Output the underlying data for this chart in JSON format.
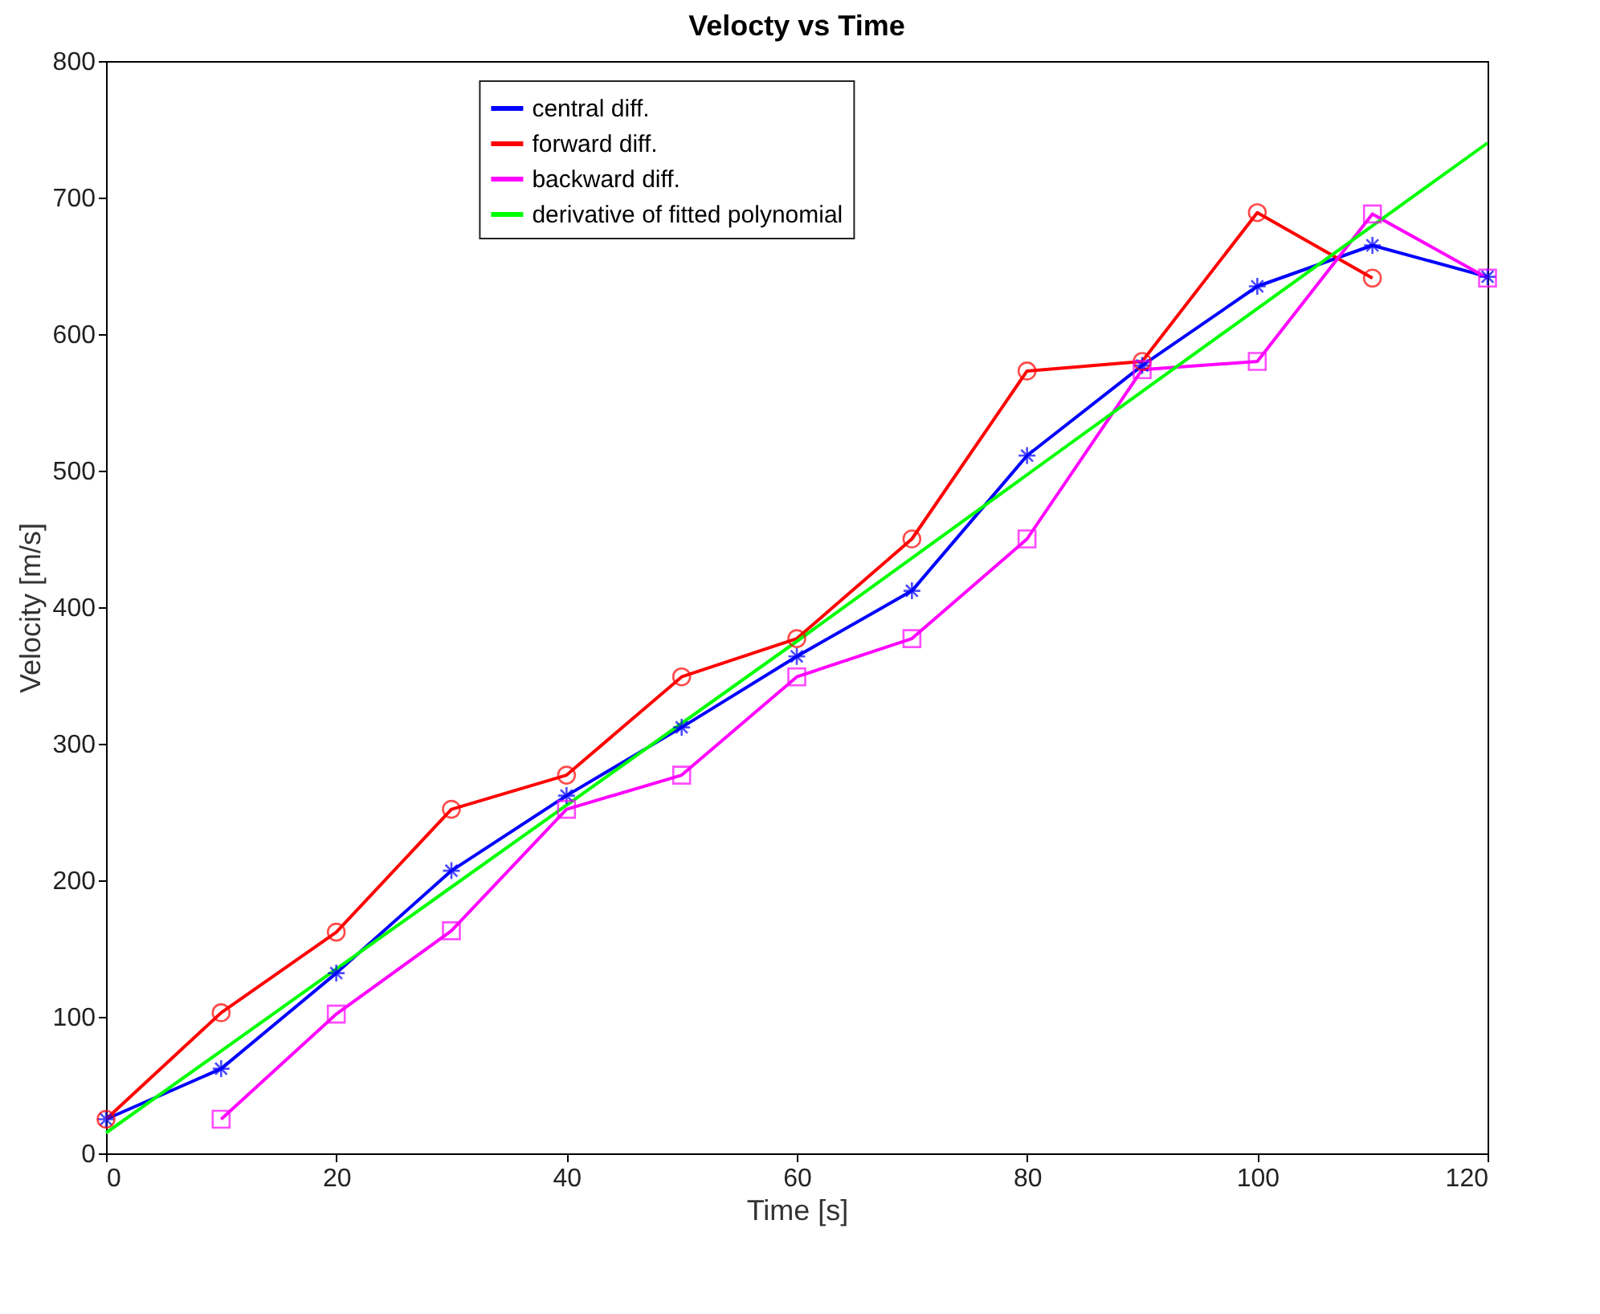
{
  "chart_data": {
    "type": "line",
    "title": "Velocty vs Time",
    "xlabel": "Time [s]",
    "ylabel": "Velocity [m/s]",
    "xlim": [
      0,
      120
    ],
    "xticks": [
      0,
      20,
      40,
      60,
      80,
      100,
      120
    ],
    "ylim": [
      0,
      800
    ],
    "yticks": [
      0,
      100,
      200,
      300,
      400,
      500,
      600,
      700,
      800
    ],
    "grid": false,
    "legend": "top",
    "line_style": "solid",
    "series": [
      {
        "name": "central diff.",
        "color": "#0000ff",
        "marker": "cross",
        "x": [
          0,
          10,
          20,
          30,
          40,
          50,
          60,
          70,
          80,
          90,
          100,
          110,
          120
        ],
        "values": [
          25,
          62,
          132,
          207,
          262,
          312,
          364,
          412,
          511,
          577,
          635,
          665,
          642
        ]
      },
      {
        "name": "forward diff.",
        "color": "#ff0000",
        "marker": "circle",
        "x": [
          0,
          10,
          20,
          30,
          40,
          50,
          60,
          70,
          80,
          90,
          100,
          110
        ],
        "values": [
          25,
          103,
          162,
          252,
          277,
          349,
          377,
          450,
          573,
          580,
          689,
          641
        ]
      },
      {
        "name": "backward diff.",
        "color": "#ff00ff",
        "marker": "square",
        "x": [
          10,
          20,
          30,
          40,
          50,
          60,
          70,
          80,
          90,
          100,
          110,
          120
        ],
        "values": [
          25,
          102,
          163,
          252,
          277,
          349,
          377,
          450,
          574,
          580,
          688,
          641
        ]
      },
      {
        "name": "derivative of fitted polynomial",
        "color": "#00ff00",
        "marker": "none",
        "x": [
          0,
          30,
          60,
          90,
          120
        ],
        "values": [
          15,
          195,
          375,
          558,
          740
        ]
      }
    ]
  }
}
